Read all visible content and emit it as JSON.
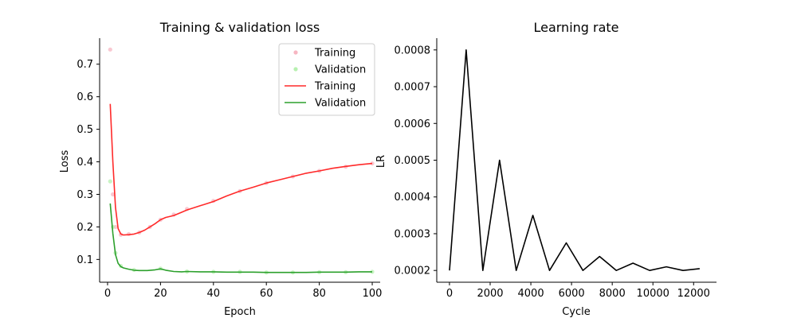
{
  "chart_data": [
    {
      "type": "line",
      "title": "Training & validation loss",
      "xlabel": "Epoch",
      "ylabel": "Loss",
      "xlim": [
        -3,
        103
      ],
      "ylim": [
        0.03,
        0.78
      ],
      "xticks": [
        0,
        20,
        40,
        60,
        80,
        100
      ],
      "yticks": [
        0.1,
        0.2,
        0.3,
        0.4,
        0.5,
        0.6,
        0.7
      ],
      "grid": false,
      "legend_placement": "top-right",
      "legend": [
        "Training",
        "Validation",
        "Training",
        "Validation"
      ],
      "series": [
        {
          "name": "Training",
          "kind": "scatter",
          "color": "#f7b6c2",
          "x": [
            1,
            2,
            3,
            5,
            8,
            12,
            16,
            20,
            25,
            30,
            40,
            50,
            60,
            70,
            80,
            90,
            100
          ],
          "y": [
            0.745,
            0.3,
            0.2,
            0.176,
            0.178,
            0.183,
            0.2,
            0.222,
            0.238,
            0.255,
            0.28,
            0.31,
            0.335,
            0.355,
            0.372,
            0.385,
            0.395
          ]
        },
        {
          "name": "Validation",
          "kind": "scatter",
          "color": "#b7f0b0",
          "x": [
            1,
            2,
            3,
            5,
            10,
            20,
            30,
            40,
            50,
            60,
            70,
            80,
            90,
            100
          ],
          "y": [
            0.34,
            0.2,
            0.12,
            0.08,
            0.068,
            0.072,
            0.063,
            0.062,
            0.062,
            0.06,
            0.06,
            0.061,
            0.061,
            0.062
          ]
        },
        {
          "name": "Training",
          "kind": "line",
          "color": "#ff2a2a",
          "x": [
            1,
            2,
            3,
            4,
            5,
            6,
            8,
            10,
            12,
            14,
            16,
            18,
            20,
            22,
            25,
            28,
            30,
            35,
            40,
            45,
            50,
            55,
            60,
            65,
            70,
            75,
            80,
            85,
            90,
            95,
            100
          ],
          "y": [
            0.578,
            0.4,
            0.26,
            0.195,
            0.178,
            0.175,
            0.176,
            0.178,
            0.183,
            0.19,
            0.2,
            0.21,
            0.222,
            0.229,
            0.235,
            0.245,
            0.252,
            0.265,
            0.278,
            0.295,
            0.31,
            0.322,
            0.335,
            0.345,
            0.355,
            0.365,
            0.372,
            0.38,
            0.386,
            0.391,
            0.395
          ]
        },
        {
          "name": "Validation",
          "kind": "line",
          "color": "#2ca02c",
          "x": [
            1,
            2,
            3,
            4,
            5,
            6,
            8,
            10,
            12,
            15,
            18,
            20,
            22,
            25,
            28,
            30,
            35,
            40,
            45,
            50,
            55,
            60,
            65,
            70,
            75,
            80,
            85,
            90,
            95,
            100
          ],
          "y": [
            0.272,
            0.18,
            0.115,
            0.088,
            0.078,
            0.074,
            0.07,
            0.067,
            0.066,
            0.066,
            0.068,
            0.071,
            0.067,
            0.063,
            0.062,
            0.063,
            0.062,
            0.062,
            0.061,
            0.061,
            0.061,
            0.06,
            0.06,
            0.06,
            0.06,
            0.061,
            0.061,
            0.061,
            0.062,
            0.062
          ]
        }
      ]
    },
    {
      "type": "line",
      "title": "Learning rate",
      "xlabel": "Cycle",
      "ylabel": "LR",
      "xlim": [
        -625,
        13125
      ],
      "ylim": [
        0.000168,
        0.000832
      ],
      "xticks": [
        0,
        2000,
        4000,
        6000,
        8000,
        10000,
        12000
      ],
      "yticks": [
        0.0002,
        0.0003,
        0.0004,
        0.0005,
        0.0006,
        0.0007,
        0.0008
      ],
      "ytick_labels": [
        "0.0002",
        "0.0003",
        "0.0004",
        "0.0005",
        "0.0006",
        "0.0007",
        "0.0008"
      ],
      "grid": false,
      "series": [
        {
          "color": "#000000",
          "x": [
            0,
            820,
            1640,
            2460,
            3280,
            4100,
            4920,
            5740,
            6560,
            7380,
            8200,
            9020,
            9840,
            10660,
            11480,
            12300
          ],
          "y": [
            0.0002,
            0.0008,
            0.0002,
            0.0005,
            0.0002,
            0.00035,
            0.0002,
            0.000275,
            0.0002,
            0.000238,
            0.0002,
            0.00022,
            0.0002,
            0.00021,
            0.0002,
            0.000205
          ]
        }
      ]
    }
  ]
}
